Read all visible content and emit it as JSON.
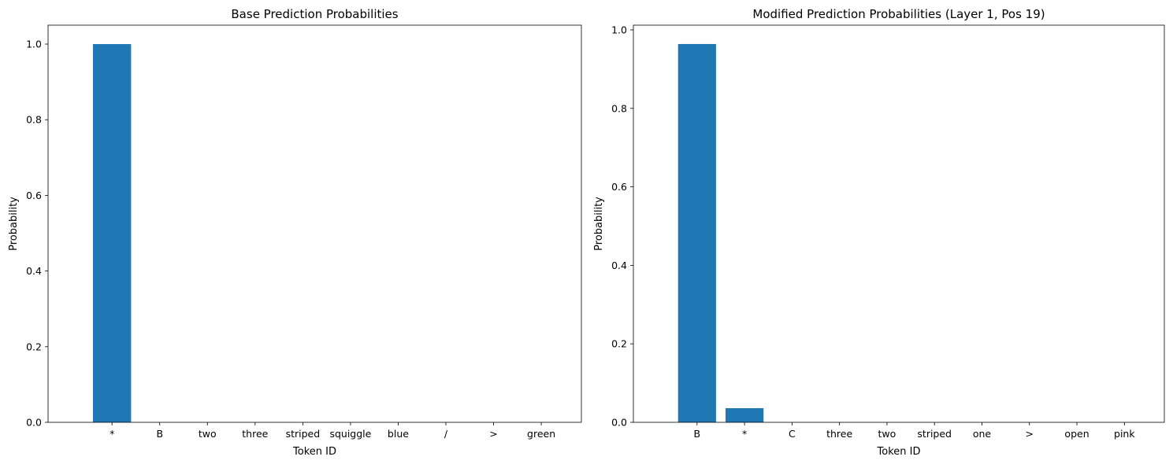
{
  "chart_data": [
    {
      "type": "bar",
      "title": "Base Prediction Probabilities",
      "xlabel": "Token ID",
      "ylabel": "Probability",
      "categories": [
        "*",
        "B",
        "two",
        "three",
        "striped",
        "squiggle",
        "blue",
        "/",
        ">",
        "green"
      ],
      "values": [
        1.0,
        0.0,
        0.0,
        0.0,
        0.0,
        0.0,
        0.0,
        0.0,
        0.0,
        0.0
      ],
      "ylim": [
        0,
        1.05
      ],
      "yticks": [
        "0.0",
        "0.2",
        "0.4",
        "0.6",
        "0.8",
        "1.0"
      ],
      "grid": false,
      "bar_color": "#1f77b4"
    },
    {
      "type": "bar",
      "title": "Modified Prediction Probabilities (Layer 1, Pos 19)",
      "xlabel": "Token ID",
      "ylabel": "Probability",
      "categories": [
        "B",
        "*",
        "C",
        "three",
        "two",
        "striped",
        "one",
        ">",
        "open",
        "pink"
      ],
      "values": [
        0.964,
        0.036,
        0.0,
        0.0,
        0.0,
        0.0,
        0.0,
        0.0,
        0.0,
        0.0
      ],
      "ylim": [
        0,
        1.012
      ],
      "yticks": [
        "0.0",
        "0.2",
        "0.4",
        "0.6",
        "0.8",
        "1.0"
      ],
      "grid": false,
      "bar_color": "#1f77b4"
    }
  ]
}
